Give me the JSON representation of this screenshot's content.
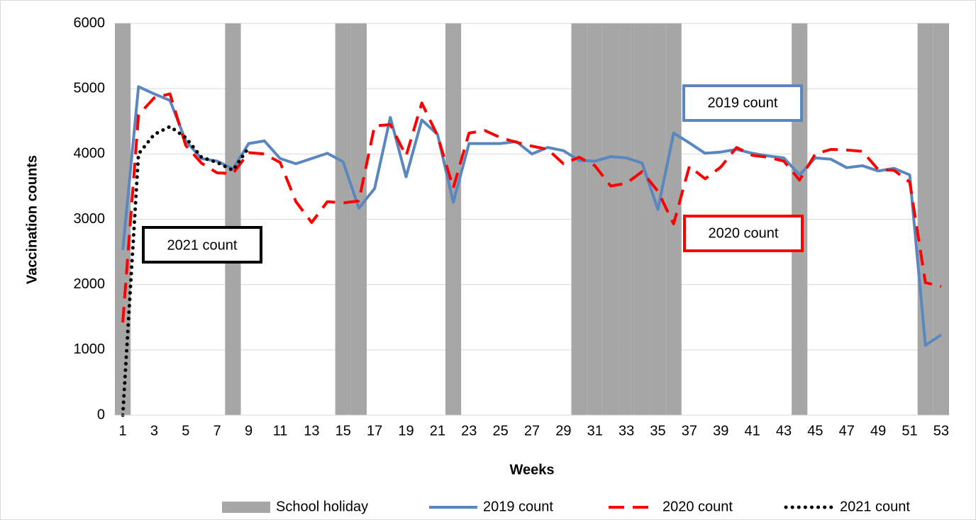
{
  "chart_data": {
    "type": "line",
    "x_label": "Weeks",
    "y_label": "Vaccination counts",
    "x": [
      1,
      2,
      3,
      4,
      5,
      6,
      7,
      8,
      9,
      10,
      11,
      12,
      13,
      14,
      15,
      16,
      17,
      18,
      19,
      20,
      21,
      22,
      23,
      24,
      25,
      26,
      27,
      28,
      29,
      30,
      31,
      32,
      33,
      34,
      35,
      36,
      37,
      38,
      39,
      40,
      41,
      42,
      43,
      44,
      45,
      46,
      47,
      48,
      49,
      50,
      51,
      52,
      53
    ],
    "xlim": [
      0.5,
      53.5
    ],
    "xticks": [
      1,
      3,
      5,
      7,
      9,
      11,
      13,
      15,
      17,
      19,
      21,
      23,
      25,
      27,
      29,
      31,
      33,
      35,
      37,
      39,
      41,
      43,
      45,
      47,
      49,
      51,
      53
    ],
    "ylim": [
      0,
      6000
    ],
    "yticks": [
      0,
      1000,
      2000,
      3000,
      4000,
      5000,
      6000
    ],
    "grid": true,
    "legend": "bottom",
    "series": [
      {
        "name": "School holiday",
        "kind": "bar",
        "color": "#a6a6a6",
        "values": [
          6000,
          null,
          null,
          null,
          null,
          null,
          null,
          6000,
          null,
          null,
          null,
          null,
          null,
          null,
          6000,
          6000,
          null,
          null,
          null,
          null,
          null,
          6000,
          null,
          null,
          null,
          null,
          null,
          null,
          null,
          6000,
          6000,
          6000,
          6000,
          6000,
          6000,
          6000,
          null,
          null,
          null,
          null,
          null,
          null,
          null,
          6000,
          null,
          null,
          null,
          null,
          null,
          null,
          null,
          6000,
          6000
        ]
      },
      {
        "name": "2019 count",
        "kind": "line",
        "style": "solid",
        "color": "#5b87c1",
        "values": [
          2530,
          5030,
          4920,
          4820,
          4200,
          3930,
          3890,
          3770,
          4160,
          4200,
          3930,
          3850,
          3930,
          4010,
          3880,
          3170,
          3470,
          4560,
          3650,
          4520,
          4300,
          3260,
          4160,
          4160,
          4160,
          4190,
          4000,
          4100,
          4050,
          3900,
          3890,
          3960,
          3940,
          3860,
          3150,
          4320,
          4170,
          4010,
          4030,
          4070,
          4010,
          3970,
          3940,
          3680,
          3940,
          3920,
          3790,
          3820,
          3740,
          3780,
          3680,
          1070,
          1230
        ]
      },
      {
        "name": "2020 count",
        "kind": "line",
        "style": "dashed",
        "color": "#ff0000",
        "values": [
          1420,
          4600,
          4860,
          4920,
          4130,
          3860,
          3710,
          3700,
          4020,
          4000,
          3870,
          3270,
          2950,
          3270,
          3250,
          3280,
          4430,
          4450,
          3970,
          4780,
          4280,
          3480,
          4320,
          4360,
          4250,
          4180,
          4120,
          4070,
          3850,
          3950,
          3820,
          3510,
          3550,
          3730,
          3430,
          2930,
          3810,
          3620,
          3800,
          4100,
          3980,
          3950,
          3890,
          3600,
          4000,
          4070,
          4060,
          4040,
          3760,
          3750,
          3570,
          2030,
          1970
        ]
      },
      {
        "name": "2021 count",
        "kind": "line",
        "style": "dotted",
        "color": "#000000",
        "values": [
          0,
          4000,
          4300,
          4420,
          4250,
          3950,
          3870,
          3750,
          4100,
          null,
          null,
          null,
          null,
          null,
          null,
          null,
          null,
          null,
          null,
          null,
          null,
          null,
          null,
          null,
          null,
          null,
          null,
          null,
          null,
          null,
          null,
          null,
          null,
          null,
          null,
          null,
          null,
          null,
          null,
          null,
          null,
          null,
          null,
          null,
          null,
          null,
          null,
          null,
          null,
          null,
          null,
          null,
          null
        ]
      }
    ],
    "annotations": [
      "2019 count",
      "2020 count",
      "2021 count"
    ]
  }
}
